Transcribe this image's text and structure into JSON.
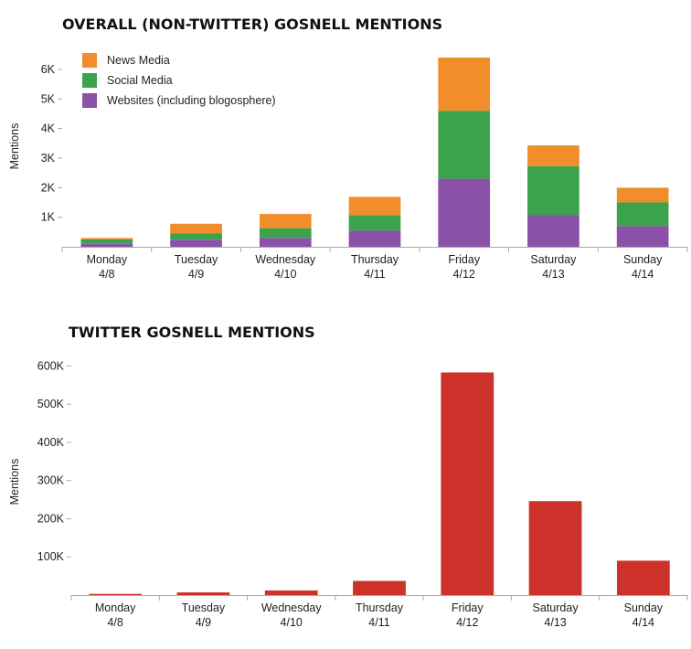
{
  "chart_data": [
    {
      "type": "bar",
      "stacked": true,
      "title": "OVERALL (NON-TWITTER) GOSNELL MENTIONS",
      "ylabel": "Mentions",
      "categories": [
        [
          "Monday",
          "4/8"
        ],
        [
          "Tuesday",
          "4/9"
        ],
        [
          "Wednesday",
          "4/10"
        ],
        [
          "Thursday",
          "4/11"
        ],
        [
          "Friday",
          "4/12"
        ],
        [
          "Saturday",
          "4/13"
        ],
        [
          "Sunday",
          "4/14"
        ]
      ],
      "yticks": [
        {
          "v": 1000,
          "label": "1K"
        },
        {
          "v": 2000,
          "label": "2K"
        },
        {
          "v": 3000,
          "label": "3K"
        },
        {
          "v": 4000,
          "label": "4K"
        },
        {
          "v": 5000,
          "label": "5K"
        },
        {
          "v": 6000,
          "label": "6K"
        }
      ],
      "ylim": [
        0,
        6400
      ],
      "legend_position": "top-left",
      "series": [
        {
          "name": "Websites (including blogosphere)",
          "color": "#8b51a8",
          "values": [
            100,
            240,
            300,
            550,
            2300,
            1080,
            700
          ]
        },
        {
          "name": "Social Media",
          "color": "#3aa34c",
          "values": [
            150,
            220,
            330,
            520,
            2300,
            1650,
            800
          ]
        },
        {
          "name": "News Media",
          "color": "#f28d2b",
          "values": [
            50,
            320,
            480,
            620,
            1800,
            700,
            500
          ]
        }
      ],
      "legend_order": [
        2,
        1,
        0
      ]
    },
    {
      "type": "bar",
      "title": "TWITTER GOSNELL MENTIONS",
      "ylabel": "Mentions",
      "categories": [
        [
          "Monday",
          "4/8"
        ],
        [
          "Tuesday",
          "4/9"
        ],
        [
          "Wednesday",
          "4/10"
        ],
        [
          "Thursday",
          "4/11"
        ],
        [
          "Friday",
          "4/12"
        ],
        [
          "Saturday",
          "4/13"
        ],
        [
          "Sunday",
          "4/14"
        ]
      ],
      "yticks": [
        {
          "v": 100000,
          "label": "100K"
        },
        {
          "v": 200000,
          "label": "200K"
        },
        {
          "v": 300000,
          "label": "300K"
        },
        {
          "v": 400000,
          "label": "400K"
        },
        {
          "v": 500000,
          "label": "500K"
        },
        {
          "v": 600000,
          "label": "600K"
        }
      ],
      "ylim": [
        0,
        620000
      ],
      "color": "#cc3229",
      "values": [
        3000,
        7000,
        12000,
        37000,
        583000,
        246000,
        90000
      ]
    }
  ]
}
